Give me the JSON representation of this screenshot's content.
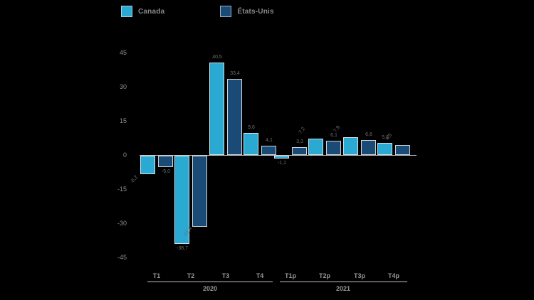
{
  "legend": {
    "items": [
      {
        "label": "Canada",
        "color": "#2aa9d2"
      },
      {
        "label": "États-Unis",
        "color": "#1a4b77"
      }
    ]
  },
  "chart_data": {
    "type": "bar",
    "title": "",
    "xlabel": "",
    "ylabel": "",
    "categories": [
      "T1",
      "T2",
      "T3",
      "T4",
      "T1p",
      "T2p",
      "T3p",
      "T4p"
    ],
    "group_labels": [
      "2020",
      "2021"
    ],
    "y_ticks": [
      45,
      30,
      15,
      0,
      -15,
      -30,
      -45
    ],
    "ylim": [
      -45,
      45
    ],
    "grid": false,
    "legend_position": "top",
    "series": [
      {
        "name": "Canada",
        "color": "#2aa9d2",
        "values": [
          -8.2,
          -38.7,
          40.5,
          9.6,
          -1.1,
          7.2,
          7.9,
          5.3
        ],
        "labels": [
          "-8,2",
          "-38,7",
          "40,5",
          "9,6",
          "-1,1",
          "7,2",
          "7,9",
          "5,3"
        ],
        "rotated": [
          true,
          false,
          false,
          false,
          false,
          true,
          true,
          false
        ]
      },
      {
        "name": "États-Unis",
        "color": "#1a4b77",
        "values": [
          -5.0,
          -31.4,
          33.4,
          4.1,
          3.3,
          6.1,
          6.6,
          4.5
        ],
        "labels": [
          "-5,0",
          "-31,4",
          "33,4",
          "4,1",
          "3,3",
          "6,1",
          "6,6",
          "4,5"
        ],
        "rotated": [
          false,
          true,
          false,
          false,
          false,
          false,
          false,
          true
        ]
      }
    ]
  }
}
